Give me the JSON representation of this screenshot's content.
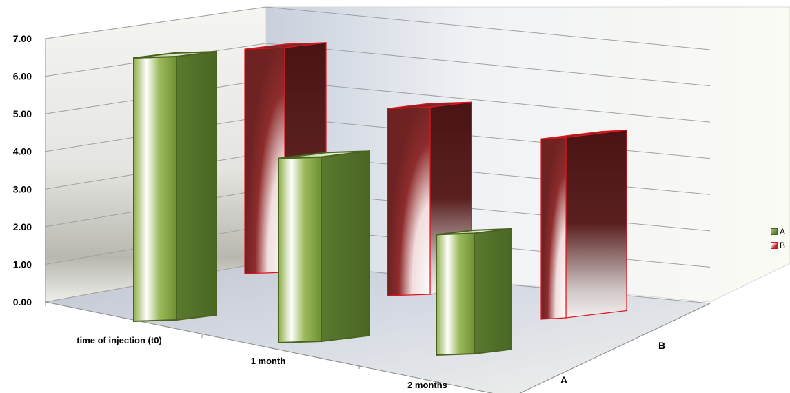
{
  "chart_data": {
    "type": "bar",
    "subtype": "3d-clustered-column",
    "categories": [
      "time of injection (t0)",
      "1 month",
      "2 months"
    ],
    "depth_labels": [
      "A",
      "B"
    ],
    "series": [
      {
        "name": "A",
        "values": [
          7.0,
          4.9,
          3.2
        ]
      },
      {
        "name": "B",
        "values": [
          6.6,
          5.5,
          5.3
        ]
      }
    ],
    "y_ticks": [
      "0.00",
      "1.00",
      "2.00",
      "3.00",
      "4.00",
      "5.00",
      "6.00",
      "7.00"
    ],
    "ylim": [
      0,
      7
    ],
    "grid": true,
    "legend_position": "right",
    "colors": {
      "A": "#5a7a2e",
      "B": "#8b1a1a",
      "B_edge": "#e0141c",
      "A_edge": "#4b6320"
    }
  },
  "legend": {
    "items": [
      {
        "label": "A"
      },
      {
        "label": "B"
      }
    ]
  }
}
